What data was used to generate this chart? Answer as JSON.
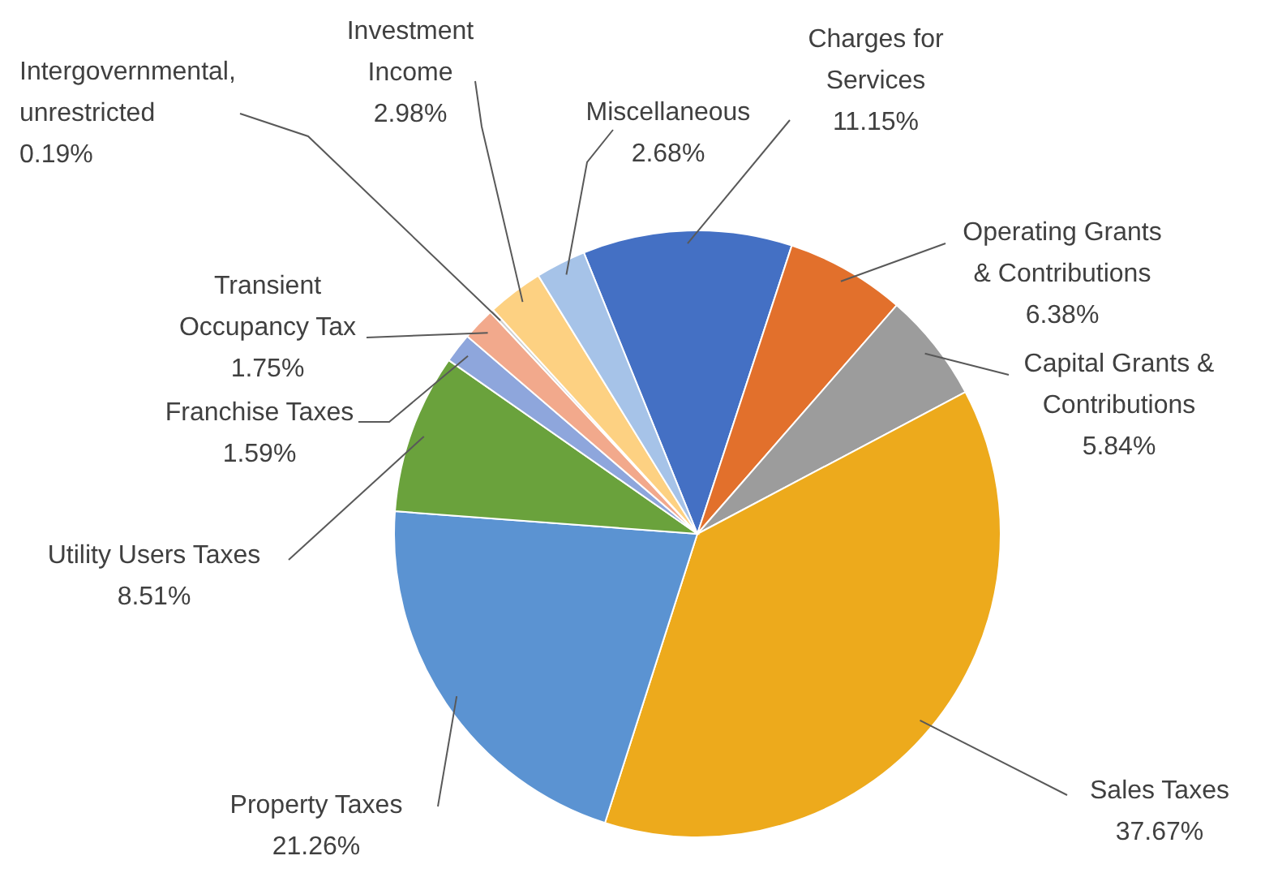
{
  "chart_data": {
    "type": "pie",
    "categories": [
      "Charges for Services",
      "Operating Grants & Contributions",
      "Capital Grants & Contributions",
      "Sales Taxes",
      "Property Taxes",
      "Utility Users Taxes",
      "Franchise Taxes",
      "Transient Occupancy Tax",
      "Intergovernmental, unrestricted",
      "Investment Income",
      "Miscellaneous"
    ],
    "values": [
      11.15,
      6.38,
      5.84,
      37.67,
      21.26,
      8.51,
      1.59,
      1.75,
      0.19,
      2.98,
      2.68
    ],
    "value_labels": [
      "11.15%",
      "6.38%",
      "5.84%",
      "37.67%",
      "21.26%",
      "8.51%",
      "1.59%",
      "1.75%",
      "0.19%",
      "2.98%",
      "2.68%"
    ],
    "colors": [
      "#4470c4",
      "#e2702c",
      "#9c9c9c",
      "#edaa1c",
      "#5b93d2",
      "#6aa23c",
      "#8ea6dc",
      "#f2a98c",
      "#cfcfcf",
      "#fdd182",
      "#a6c3e8"
    ]
  }
}
